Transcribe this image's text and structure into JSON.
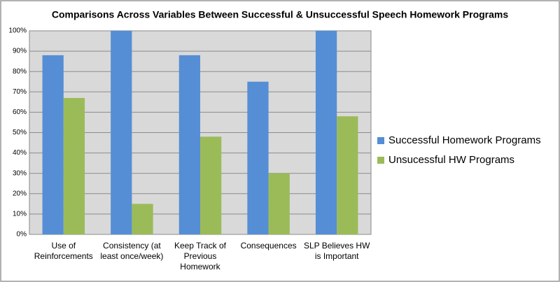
{
  "chart_data": {
    "type": "bar",
    "title": "Comparisons Across Variables Between Successful & Unsuccessful Speech Homework Programs",
    "categories": [
      "Use of Reinforcements",
      "Consistency (at least once/week)",
      "Keep Track of Previous Homework",
      "Consequences",
      "SLP Believes HW is Important"
    ],
    "series": [
      {
        "name": "Successful Homework Programs",
        "color": "#558ed5",
        "values": [
          88,
          100,
          88,
          75,
          100
        ]
      },
      {
        "name": "Unsucessful HW Programs",
        "color": "#9bbb59",
        "values": [
          67,
          15,
          48,
          30,
          58
        ]
      }
    ],
    "ylim": [
      0,
      100
    ],
    "yticks": [
      {
        "value": 0,
        "label": "0%"
      },
      {
        "value": 10,
        "label": "10%"
      },
      {
        "value": 20,
        "label": "20%"
      },
      {
        "value": 30,
        "label": "30%"
      },
      {
        "value": 40,
        "label": "40%"
      },
      {
        "value": 50,
        "label": "50%"
      },
      {
        "value": 60,
        "label": "60%"
      },
      {
        "value": 70,
        "label": "70%"
      },
      {
        "value": 80,
        "label": "80%"
      },
      {
        "value": 90,
        "label": "90%"
      },
      {
        "value": 100,
        "label": "100%"
      }
    ],
    "grid": true,
    "legend": "right"
  }
}
